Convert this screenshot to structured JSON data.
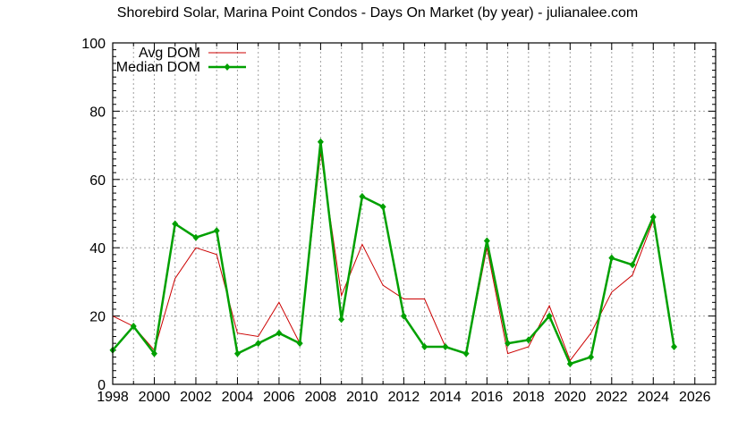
{
  "chart_data": {
    "type": "line",
    "title": "Shorebird Solar, Marina Point Condos - Days On Market (by year) - julianalee.com",
    "xlabel": "",
    "ylabel": "",
    "xlim": [
      1998,
      2027
    ],
    "ylim": [
      0,
      100
    ],
    "grid": true,
    "legend_position": "top-left",
    "x_ticks": [
      1998,
      2000,
      2002,
      2004,
      2006,
      2008,
      2010,
      2012,
      2014,
      2016,
      2018,
      2020,
      2022,
      2024,
      2026
    ],
    "y_ticks": [
      0,
      20,
      40,
      60,
      80,
      100
    ],
    "x": [
      1998,
      1999,
      2000,
      2001,
      2002,
      2003,
      2004,
      2005,
      2006,
      2007,
      2008,
      2009,
      2010,
      2011,
      2012,
      2013,
      2014,
      2015,
      2016,
      2017,
      2018,
      2019,
      2020,
      2021,
      2022,
      2023,
      2024,
      2025
    ],
    "series": [
      {
        "name": "Avg DOM",
        "color": "#cc0000",
        "marker": "none",
        "values": [
          20,
          17,
          10,
          31,
          40,
          38,
          15,
          14,
          24,
          12,
          68,
          26,
          41,
          29,
          25,
          25,
          11,
          9,
          40,
          9,
          11,
          23,
          7,
          15,
          27,
          32,
          48,
          11
        ]
      },
      {
        "name": "Median DOM",
        "color": "#00a000",
        "marker": "diamond",
        "values": [
          10,
          17,
          9,
          47,
          43,
          45,
          9,
          12,
          15,
          12,
          71,
          19,
          55,
          52,
          20,
          11,
          11,
          9,
          42,
          12,
          13,
          20,
          6,
          8,
          37,
          35,
          49,
          11
        ]
      }
    ]
  }
}
